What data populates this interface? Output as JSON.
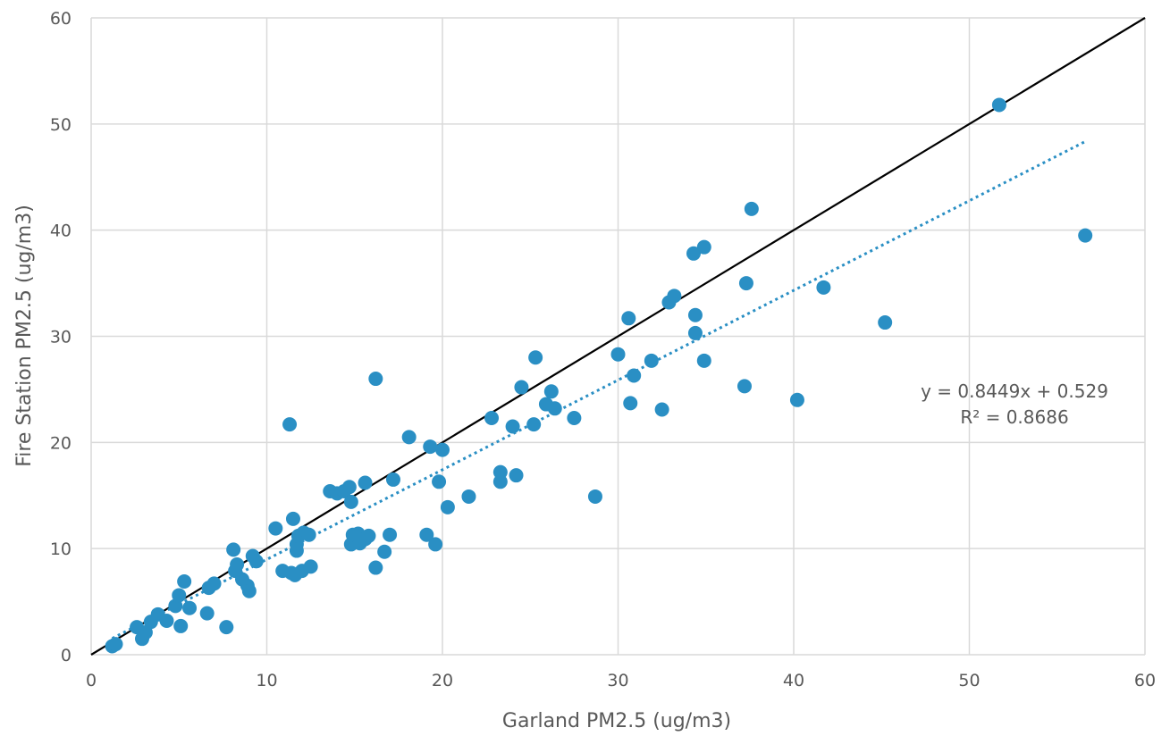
{
  "chart_data": {
    "type": "scatter",
    "xlabel": "Garland PM2.5 (ug/m3)",
    "ylabel": "Fire Station PM2.5 (ug/m3)",
    "xlim": [
      0,
      60
    ],
    "ylim": [
      0,
      60
    ],
    "x_ticks": [
      "0",
      "10",
      "20",
      "30",
      "40",
      "50",
      "60"
    ],
    "y_ticks": [
      "0",
      "10",
      "20",
      "30",
      "40",
      "50",
      "60"
    ],
    "grid": true,
    "colors": {
      "points": "#2a8fc4",
      "trendline": "#2a8fc4",
      "one_to_one_line": "#000000"
    },
    "reference_line": {
      "type": "1:1",
      "from": [
        0,
        0
      ],
      "to": [
        60,
        60
      ]
    },
    "trendline": {
      "type": "linear",
      "slope": 0.8449,
      "intercept": 0.529,
      "x_range": [
        1.2,
        56.6
      ],
      "style": "dotted"
    },
    "annotation": {
      "equation": "y = 0.8449x + 0.529",
      "r_squared": "R² = 0.8686"
    },
    "points": [
      [
        1.2,
        0.8
      ],
      [
        1.4,
        1.0
      ],
      [
        2.6,
        2.6
      ],
      [
        2.9,
        1.5
      ],
      [
        3.1,
        2.1
      ],
      [
        3.4,
        3.1
      ],
      [
        3.8,
        3.8
      ],
      [
        4.3,
        3.2
      ],
      [
        4.8,
        4.6
      ],
      [
        5.0,
        5.6
      ],
      [
        5.1,
        2.7
      ],
      [
        5.3,
        6.9
      ],
      [
        5.6,
        4.4
      ],
      [
        6.6,
        3.9
      ],
      [
        6.7,
        6.3
      ],
      [
        7.0,
        6.7
      ],
      [
        7.7,
        2.6
      ],
      [
        8.1,
        9.9
      ],
      [
        8.2,
        7.9
      ],
      [
        8.3,
        8.5
      ],
      [
        8.6,
        7.1
      ],
      [
        8.9,
        6.5
      ],
      [
        9.0,
        6.0
      ],
      [
        9.2,
        9.3
      ],
      [
        9.4,
        8.8
      ],
      [
        10.5,
        11.9
      ],
      [
        10.9,
        7.9
      ],
      [
        11.3,
        21.7
      ],
      [
        11.4,
        7.7
      ],
      [
        11.5,
        12.8
      ],
      [
        11.6,
        7.5
      ],
      [
        11.7,
        9.8
      ],
      [
        11.7,
        10.4
      ],
      [
        11.8,
        11.2
      ],
      [
        12.0,
        7.9
      ],
      [
        12.1,
        11.5
      ],
      [
        12.4,
        11.3
      ],
      [
        12.5,
        8.3
      ],
      [
        13.6,
        15.4
      ],
      [
        14.0,
        15.2
      ],
      [
        14.4,
        15.4
      ],
      [
        14.7,
        15.8
      ],
      [
        14.8,
        14.4
      ],
      [
        14.8,
        10.4
      ],
      [
        14.9,
        11.3
      ],
      [
        15.2,
        11.4
      ],
      [
        15.3,
        10.5
      ],
      [
        15.6,
        16.2
      ],
      [
        15.6,
        10.9
      ],
      [
        15.8,
        11.2
      ],
      [
        16.2,
        26.0
      ],
      [
        16.2,
        8.2
      ],
      [
        16.7,
        9.7
      ],
      [
        17.0,
        11.3
      ],
      [
        17.2,
        16.5
      ],
      [
        18.1,
        20.5
      ],
      [
        19.1,
        11.3
      ],
      [
        19.3,
        19.6
      ],
      [
        19.6,
        10.4
      ],
      [
        19.8,
        16.3
      ],
      [
        20.0,
        19.3
      ],
      [
        20.3,
        13.9
      ],
      [
        21.5,
        14.9
      ],
      [
        22.8,
        22.3
      ],
      [
        23.3,
        16.3
      ],
      [
        23.3,
        17.2
      ],
      [
        24.0,
        21.5
      ],
      [
        24.2,
        16.9
      ],
      [
        24.5,
        25.2
      ],
      [
        25.2,
        21.7
      ],
      [
        25.3,
        28.0
      ],
      [
        25.9,
        23.6
      ],
      [
        26.2,
        24.8
      ],
      [
        26.4,
        23.2
      ],
      [
        27.5,
        22.3
      ],
      [
        28.7,
        14.9
      ],
      [
        30.0,
        28.3
      ],
      [
        30.6,
        31.7
      ],
      [
        30.7,
        23.7
      ],
      [
        30.9,
        26.3
      ],
      [
        31.9,
        27.7
      ],
      [
        32.5,
        23.1
      ],
      [
        32.9,
        33.2
      ],
      [
        33.2,
        33.8
      ],
      [
        34.3,
        37.8
      ],
      [
        34.4,
        32.0
      ],
      [
        34.4,
        30.3
      ],
      [
        34.9,
        38.4
      ],
      [
        34.9,
        27.7
      ],
      [
        37.2,
        25.3
      ],
      [
        37.3,
        35.0
      ],
      [
        37.6,
        42.0
      ],
      [
        40.2,
        24.0
      ],
      [
        41.7,
        34.6
      ],
      [
        45.2,
        31.3
      ],
      [
        51.7,
        51.8
      ],
      [
        56.6,
        39.5
      ]
    ]
  }
}
